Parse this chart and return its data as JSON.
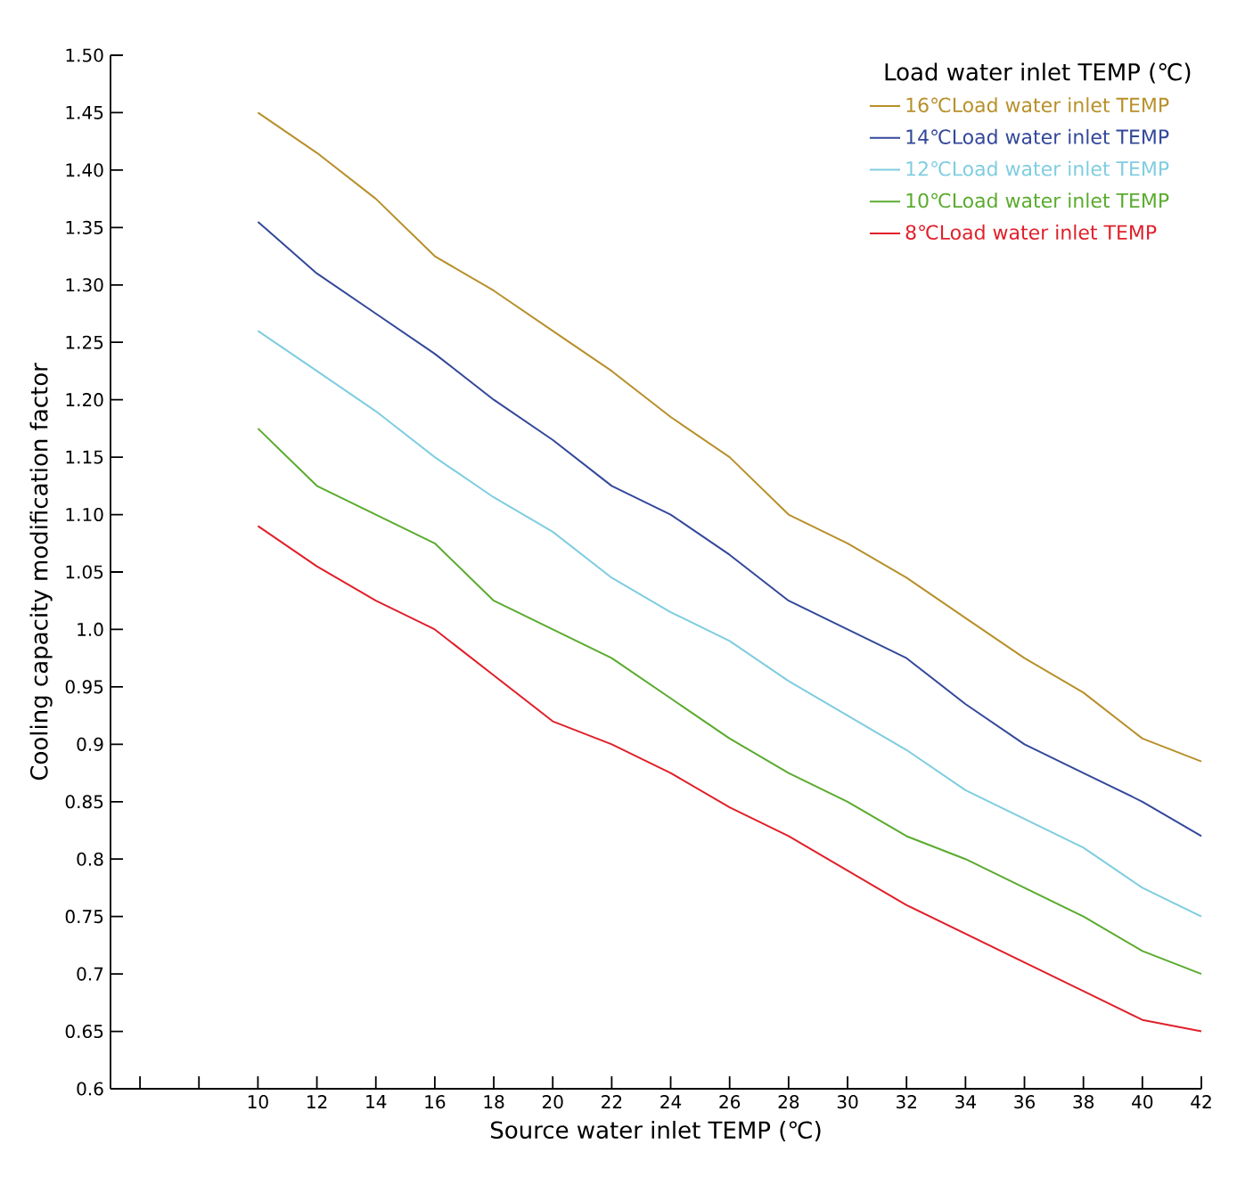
{
  "chart_data": {
    "type": "line",
    "xlabel": "Source water inlet TEMP (℃)",
    "ylabel": "Cooling capacity modification factor",
    "legend_title": "Load water inlet TEMP (℃)",
    "legend": "top right",
    "x": [
      10,
      12,
      14,
      16,
      18,
      20,
      22,
      24,
      26,
      28,
      30,
      32,
      34,
      36,
      38,
      40,
      42
    ],
    "xlim": [
      5,
      42
    ],
    "xticks": [
      {
        "value": 6,
        "label": null
      },
      {
        "value": 8,
        "label": null
      },
      10,
      12,
      14,
      16,
      18,
      20,
      22,
      24,
      26,
      28,
      30,
      32,
      34,
      36,
      38,
      40,
      42
    ],
    "ylim": [
      0.6,
      1.5
    ],
    "yticks": [
      {
        "value": 0.6,
        "label": "0.6"
      },
      0.65,
      {
        "value": 0.7,
        "label": "0.7"
      },
      0.75,
      {
        "value": 0.8,
        "label": "0.8"
      },
      0.85,
      {
        "value": 0.9,
        "label": "0.9"
      },
      0.95,
      {
        "value": 1.0,
        "label": "1.0"
      },
      1.05,
      {
        "value": 1.1,
        "label": "1.10"
      },
      1.15,
      {
        "value": 1.2,
        "label": "1.20"
      },
      1.25,
      {
        "value": 1.3,
        "label": "1.30"
      },
      1.35,
      {
        "value": 1.4,
        "label": "1.40"
      },
      1.45,
      {
        "value": 1.5,
        "label": "1.50"
      }
    ],
    "grid": false,
    "series": [
      {
        "name": "16℃Load water inlet TEMP",
        "color": "#b8902a",
        "values": [
          1.45,
          1.415,
          1.375,
          1.325,
          1.295,
          1.26,
          1.225,
          1.185,
          1.15,
          1.1,
          1.075,
          1.045,
          1.01,
          0.975,
          0.945,
          0.905,
          0.885
        ]
      },
      {
        "name": "14℃Load water inlet TEMP",
        "color": "#33489a",
        "values": [
          1.355,
          1.31,
          1.275,
          1.24,
          1.2,
          1.165,
          1.125,
          1.1,
          1.065,
          1.025,
          1.0,
          0.975,
          0.935,
          0.9,
          0.875,
          0.85,
          0.82
        ]
      },
      {
        "name": "12℃Load water inlet TEMP",
        "color": "#7fcde0",
        "values": [
          1.26,
          1.225,
          1.19,
          1.15,
          1.115,
          1.085,
          1.045,
          1.015,
          0.99,
          0.955,
          0.925,
          0.895,
          0.86,
          0.835,
          0.81,
          0.775,
          0.75
        ]
      },
      {
        "name": "10℃Load water inlet TEMP",
        "color": "#5aab2e",
        "values": [
          1.175,
          1.125,
          1.1,
          1.075,
          1.025,
          1.0,
          0.975,
          0.94,
          0.905,
          0.875,
          0.85,
          0.82,
          0.8,
          0.775,
          0.75,
          0.72,
          0.7
        ]
      },
      {
        "name": "8℃Load water inlet TEMP",
        "color": "#e0202a",
        "values": [
          1.09,
          1.055,
          1.025,
          1.0,
          0.96,
          0.92,
          0.9,
          0.875,
          0.845,
          0.82,
          0.79,
          0.76,
          0.735,
          0.71,
          0.685,
          0.66,
          0.65
        ]
      }
    ]
  }
}
